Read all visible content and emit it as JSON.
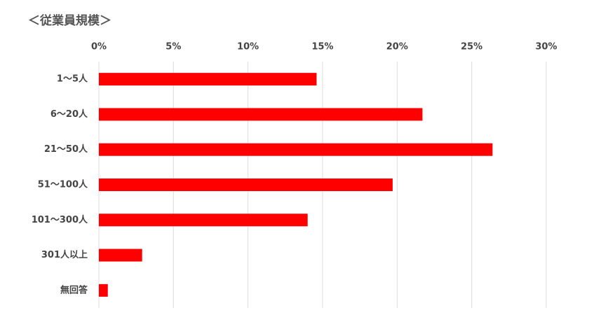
{
  "chart_data": {
    "type": "barh",
    "title": "＜従業員規模＞",
    "categories": [
      "1～5人",
      "6～20人",
      "21～50人",
      "51～100人",
      "101～300人",
      "301人以上",
      "無回答"
    ],
    "values": [
      14.6,
      21.7,
      26.4,
      19.7,
      14.0,
      2.9,
      0.6
    ],
    "color": "#ff0000",
    "xlim": [
      0,
      30
    ],
    "xticks": [
      {
        "value": 0,
        "label": "0%"
      },
      {
        "value": 5,
        "label": "5%"
      },
      {
        "value": 10,
        "label": "10%"
      },
      {
        "value": 15,
        "label": "15%"
      },
      {
        "value": 20,
        "label": "20%"
      },
      {
        "value": 25,
        "label": "25%"
      },
      {
        "value": 30,
        "label": "30%"
      }
    ],
    "grid": true
  }
}
